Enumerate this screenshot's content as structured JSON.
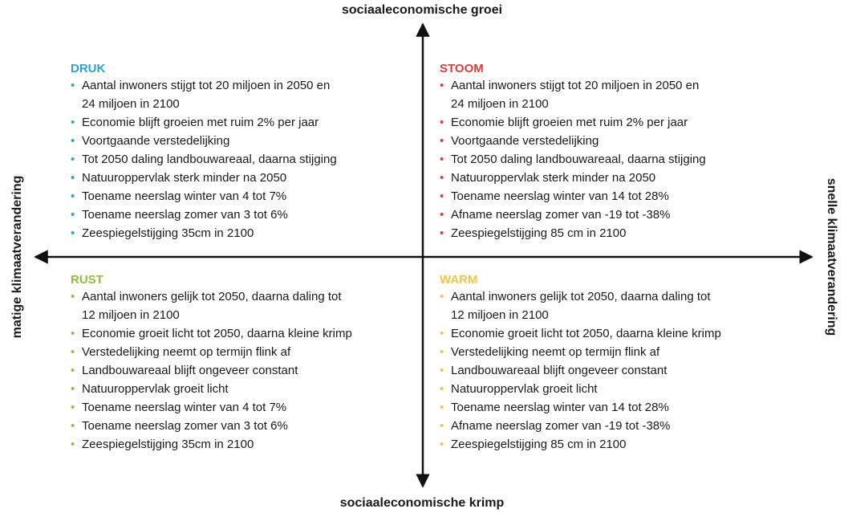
{
  "axes": {
    "top": "sociaaleconomische groei",
    "bottom": "sociaaleconomische krimp",
    "left": "matige klimaatverandering",
    "right": "snelle klimaatverandering"
  },
  "quadrants": [
    {
      "title": "DRUK",
      "color": "#29a3d6",
      "items": [
        [
          "Aantal inwoners stijgt tot 20 miljoen in 2050 en",
          "24 miljoen in 2100"
        ],
        [
          "Economie blijft groeien met ruim 2% per jaar"
        ],
        [
          "Voortgaande verstedelijking"
        ],
        [
          "Tot 2050 daling landbouwareaal, daarna stijging"
        ],
        [
          "Natuuroppervlak sterk minder na 2050"
        ],
        [
          "Toename neerslag winter van 4 tot 7%"
        ],
        [
          "Toename neerslag zomer van 3 tot 6%"
        ],
        [
          "Zeespiegelstijging 35cm in 2100"
        ]
      ]
    },
    {
      "title": "STOOM",
      "color": "#e03a3a",
      "items": [
        [
          "Aantal inwoners stijgt tot 20 miljoen in 2050 en",
          "24 miljoen in 2100"
        ],
        [
          "Economie blijft groeien met ruim 2% per jaar"
        ],
        [
          "Voortgaande verstedelijking"
        ],
        [
          "Tot 2050 daling landbouwareaal, daarna stijging"
        ],
        [
          "Natuuroppervlak sterk minder na 2050"
        ],
        [
          "Toename neerslag winter van 14 tot 28%"
        ],
        [
          "Afname neerslag zomer van -19 tot -38%"
        ],
        [
          "Zeespiegelstijging 85 cm in 2100"
        ]
      ]
    },
    {
      "title": "RUST",
      "color": "#8cbf3f",
      "items": [
        [
          "Aantal inwoners gelijk tot 2050, daarna daling tot",
          "12 miljoen in 2100"
        ],
        [
          "Economie groeit licht tot 2050, daarna kleine krimp"
        ],
        [
          "Verstedelijking neemt op termijn flink af"
        ],
        [
          "Landbouwareaal blijft ongeveer constant"
        ],
        [
          "Natuuroppervlak groeit licht"
        ],
        [
          "Toename neerslag winter van 4 tot 7%"
        ],
        [
          "Toename neerslag zomer van 3 tot 6%"
        ],
        [
          "Zeespiegelstijging 35cm in 2100"
        ]
      ]
    },
    {
      "title": "WARM",
      "color": "#f5c342",
      "items": [
        [
          "Aantal inwoners gelijk tot 2050, daarna daling tot",
          "12 miljoen in 2100"
        ],
        [
          "Economie groeit licht tot 2050, daarna kleine krimp"
        ],
        [
          "Verstedelijking neemt op termijn flink af"
        ],
        [
          "Landbouwareaal blijft ongeveer constant"
        ],
        [
          "Natuuroppervlak groeit licht"
        ],
        [
          "Toename neerslag winter van 14 tot 28%"
        ],
        [
          "Afname neerslag zomer van -19 tot -38%"
        ],
        [
          "Zeespiegelstijging 85 cm in 2100"
        ]
      ]
    }
  ]
}
